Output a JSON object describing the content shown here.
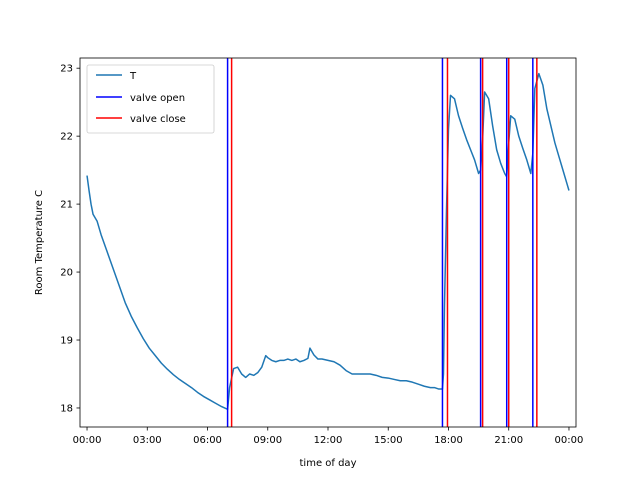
{
  "chart_data": {
    "type": "line",
    "title": "",
    "xlabel": "time of day",
    "ylabel": "Room Temperature C",
    "xlim": [
      -0.35,
      24.35
    ],
    "ylim": [
      17.72,
      23.15
    ],
    "grid": false,
    "legend_position": "top-left",
    "x_ticks": [
      {
        "value": 0,
        "label": "00:00"
      },
      {
        "value": 3,
        "label": "03:00"
      },
      {
        "value": 6,
        "label": "06:00"
      },
      {
        "value": 9,
        "label": "09:00"
      },
      {
        "value": 12,
        "label": "12:00"
      },
      {
        "value": 15,
        "label": "15:00"
      },
      {
        "value": 18,
        "label": "18:00"
      },
      {
        "value": 21,
        "label": "21:00"
      },
      {
        "value": 24,
        "label": "00:00"
      }
    ],
    "y_ticks": [
      {
        "value": 18,
        "label": "18"
      },
      {
        "value": 19,
        "label": "19"
      },
      {
        "value": 20,
        "label": "20"
      },
      {
        "value": 21,
        "label": "21"
      },
      {
        "value": 22,
        "label": "22"
      },
      {
        "value": 23,
        "label": "23"
      }
    ],
    "series": [
      {
        "name": "T",
        "color": "#1f77b4",
        "x": [
          0.0,
          0.1,
          0.2,
          0.3,
          0.5,
          0.7,
          1.0,
          1.3,
          1.6,
          1.9,
          2.2,
          2.5,
          2.8,
          3.1,
          3.4,
          3.7,
          4.0,
          4.3,
          4.6,
          4.9,
          5.2,
          5.5,
          5.8,
          6.1,
          6.4,
          6.7,
          7.0,
          7.1,
          7.3,
          7.5,
          7.7,
          7.9,
          8.1,
          8.3,
          8.5,
          8.7,
          8.9,
          9.0,
          9.2,
          9.4,
          9.6,
          9.8,
          10.0,
          10.2,
          10.4,
          10.6,
          10.8,
          11.0,
          11.1,
          11.3,
          11.5,
          11.7,
          12.0,
          12.3,
          12.6,
          12.9,
          13.2,
          13.5,
          13.8,
          14.1,
          14.4,
          14.7,
          15.0,
          15.3,
          15.6,
          15.9,
          16.2,
          16.5,
          16.8,
          17.1,
          17.3,
          17.5,
          17.7,
          17.75,
          17.8,
          17.9,
          18.0,
          18.1,
          18.3,
          18.5,
          18.7,
          18.9,
          19.1,
          19.3,
          19.5,
          19.6,
          19.7,
          19.8,
          20.0,
          20.2,
          20.4,
          20.6,
          20.8,
          20.9,
          21.0,
          21.1,
          21.3,
          21.5,
          21.7,
          21.9,
          22.1,
          22.2,
          22.3,
          22.5,
          22.7,
          22.9,
          23.1,
          23.3,
          23.5,
          23.7,
          23.9,
          24.0
        ],
        "y": [
          21.42,
          21.2,
          21.0,
          20.85,
          20.75,
          20.55,
          20.3,
          20.05,
          19.8,
          19.55,
          19.35,
          19.18,
          19.02,
          18.88,
          18.77,
          18.66,
          18.57,
          18.49,
          18.42,
          18.36,
          18.3,
          18.23,
          18.17,
          18.12,
          18.07,
          18.02,
          17.98,
          18.3,
          18.58,
          18.6,
          18.5,
          18.45,
          18.5,
          18.48,
          18.52,
          18.6,
          18.77,
          18.74,
          18.7,
          18.68,
          18.7,
          18.7,
          18.72,
          18.7,
          18.72,
          18.68,
          18.7,
          18.73,
          18.88,
          18.78,
          18.72,
          18.72,
          18.7,
          18.68,
          18.63,
          18.55,
          18.5,
          18.5,
          18.5,
          18.5,
          18.48,
          18.45,
          18.44,
          18.42,
          18.4,
          18.4,
          18.38,
          18.35,
          18.32,
          18.3,
          18.3,
          18.28,
          18.28,
          18.5,
          19.5,
          20.9,
          22.1,
          22.6,
          22.55,
          22.3,
          22.12,
          21.95,
          21.8,
          21.65,
          21.45,
          21.5,
          21.95,
          22.65,
          22.55,
          22.15,
          21.8,
          21.6,
          21.45,
          21.4,
          21.9,
          22.3,
          22.25,
          22.0,
          21.82,
          21.65,
          21.45,
          21.75,
          22.7,
          22.92,
          22.75,
          22.4,
          22.15,
          21.9,
          21.7,
          21.5,
          21.3,
          21.2
        ]
      },
      {
        "name": "valve open",
        "color": "#0000ff",
        "x": [
          7.0,
          17.7,
          19.6,
          20.9,
          22.2
        ]
      },
      {
        "name": "valve close",
        "color": "#ff0000",
        "x": [
          7.2,
          17.95,
          19.7,
          21.0,
          22.4
        ]
      }
    ]
  }
}
